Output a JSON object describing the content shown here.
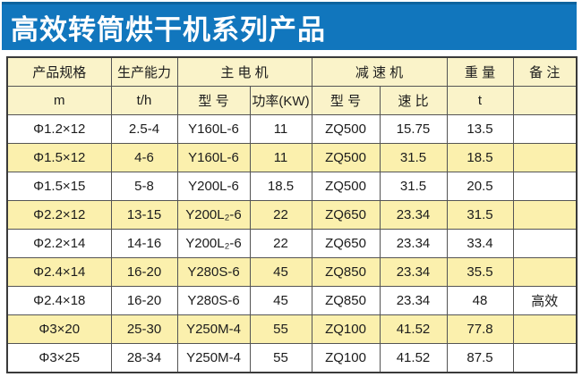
{
  "banner": {
    "title": "高效转筒烘干机系列产品",
    "background_color": "#1176bd",
    "text_color": "#ffffff"
  },
  "table": {
    "header_row1": [
      "产品规格",
      "生产能力",
      "主  电  机",
      "减  速  机",
      "重 量",
      "备 注"
    ],
    "header_row2": [
      "m",
      "t/h",
      "型 号",
      "功率(KW)",
      "型 号",
      "速 比",
      "t",
      ""
    ],
    "rows": [
      [
        "Φ1.2×12",
        "2.5-4",
        "Y160L-6",
        "11",
        "ZQ500",
        "15.75",
        "13.5",
        ""
      ],
      [
        "Φ1.5×12",
        "4-6",
        "Y160L-6",
        "11",
        "ZQ500",
        "31.5",
        "18.5",
        ""
      ],
      [
        "Φ1.5×15",
        "5-8",
        "Y200L-6",
        "18.5",
        "ZQ500",
        "31.5",
        "20.5",
        ""
      ],
      [
        "Φ2.2×12",
        "13-15",
        "Y200L₂-6",
        "22",
        "ZQ650",
        "23.34",
        "31.5",
        ""
      ],
      [
        "Φ2.2×14",
        "14-16",
        "Y200L₂-6",
        "22",
        "ZQ650",
        "23.34",
        "33.4",
        ""
      ],
      [
        "Φ2.4×14",
        "16-20",
        "Y280S-6",
        "45",
        "ZQ850",
        "23.34",
        "35.5",
        ""
      ],
      [
        "Φ2.4×18",
        "16-20",
        "Y280S-6",
        "45",
        "ZQ850",
        "23.34",
        "48",
        "高效"
      ],
      [
        "Φ3×20",
        "25-30",
        "Y250M-4",
        "55",
        "ZQ100",
        "41.52",
        "77.8",
        ""
      ],
      [
        "Φ3×25",
        "28-34",
        "Y250M-4",
        "55",
        "ZQ100",
        "41.52",
        "87.5",
        ""
      ]
    ],
    "colors": {
      "header_bg": "#faf3c9",
      "row_bg": "#ffffff",
      "row_alt_bg": "#fbf0ad",
      "border": "#545454"
    }
  }
}
